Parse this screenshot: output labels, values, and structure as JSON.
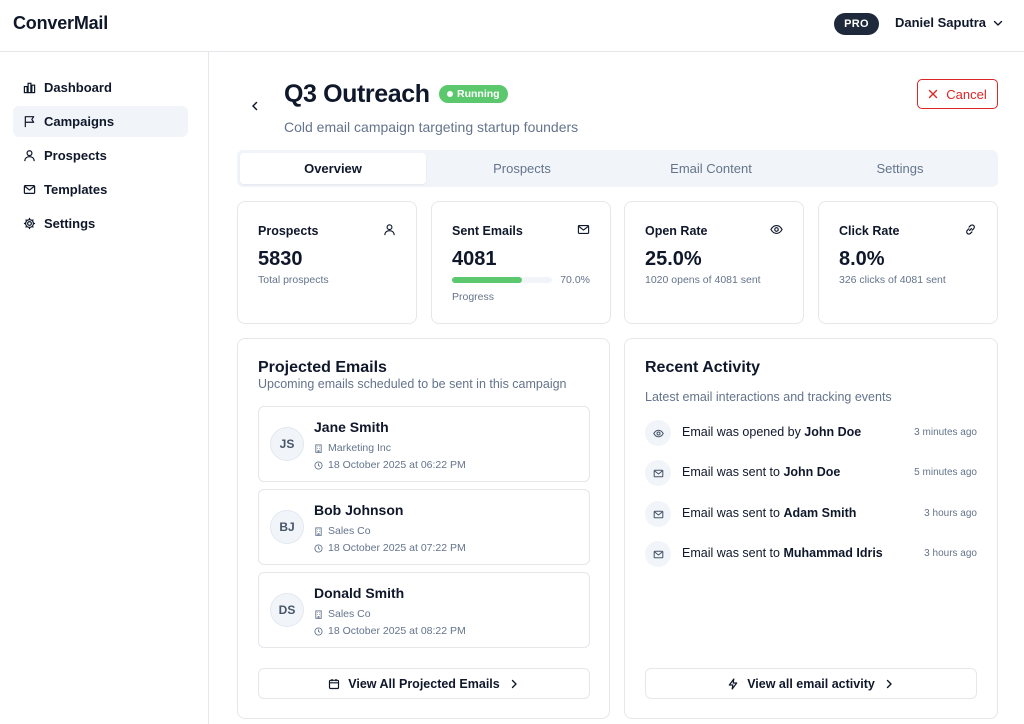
{
  "app": {
    "name": "ConverMail"
  },
  "header": {
    "plan_badge": "PRO",
    "user_name": "Daniel Saputra",
    "user_menu_icon": "chevron-down-icon"
  },
  "sidebar": {
    "items": [
      {
        "label": "Dashboard",
        "icon": "bar-chart-icon",
        "active": false
      },
      {
        "label": "Campaigns",
        "icon": "flag-icon",
        "active": true
      },
      {
        "label": "Prospects",
        "icon": "user-icon",
        "active": false
      },
      {
        "label": "Templates",
        "icon": "mail-icon",
        "active": false
      },
      {
        "label": "Settings",
        "icon": "gear-icon",
        "active": false
      }
    ]
  },
  "campaign": {
    "title": "Q3 Outreach",
    "status": "Running",
    "status_color": "#5cc86d",
    "subtitle": "Cold email campaign targeting startup founders",
    "cancel_label": "Cancel",
    "danger_color": "#dc2626"
  },
  "tabs": [
    {
      "label": "Overview",
      "active": true
    },
    {
      "label": "Prospects",
      "active": false
    },
    {
      "label": "Email Content",
      "active": false
    },
    {
      "label": "Settings",
      "active": false
    }
  ],
  "stats": {
    "prospects": {
      "label": "Prospects",
      "value": "5830",
      "sub": "Total prospects",
      "icon": "user-icon"
    },
    "sent": {
      "label": "Sent Emails",
      "value": "4081",
      "progress": 0.7,
      "progress_label": "70.0%",
      "caption": "Progress",
      "icon": "mail-icon"
    },
    "open_rate": {
      "label": "Open Rate",
      "value": "25.0%",
      "sub": "1020 opens of 4081 sent",
      "icon": "eye-icon"
    },
    "click_rate": {
      "label": "Click Rate",
      "value": "8.0%",
      "sub": "326 clicks of 4081 sent",
      "icon": "link-icon"
    }
  },
  "projected": {
    "title": "Projected Emails",
    "description": "Upcoming emails scheduled to be sent in this campaign",
    "items": [
      {
        "initials": "JS",
        "name": "Jane Smith",
        "company": "Marketing Inc",
        "scheduled": "18 October 2025 at 06:22 PM"
      },
      {
        "initials": "BJ",
        "name": "Bob Johnson",
        "company": "Sales Co",
        "scheduled": "18 October 2025 at 07:22 PM"
      },
      {
        "initials": "DS",
        "name": "Donald Smith",
        "company": "Sales Co",
        "scheduled": "18 October 2025 at 08:22 PM"
      }
    ],
    "button_label": "View All Projected Emails"
  },
  "activity": {
    "title": "Recent Activity",
    "description": "Latest email interactions and tracking events",
    "items": [
      {
        "icon": "eye-icon",
        "text": "Email was opened by ",
        "person": "John Doe",
        "time": "3 minutes ago"
      },
      {
        "icon": "mail-icon",
        "text": "Email was sent to ",
        "person": "John Doe",
        "time": "5 minutes ago"
      },
      {
        "icon": "mail-icon",
        "text": "Email was sent to ",
        "person": "Adam Smith",
        "time": "3 hours ago"
      },
      {
        "icon": "mail-icon",
        "text": "Email was sent to ",
        "person": "Muhammad Idris",
        "time": "3 hours ago"
      }
    ],
    "button_label": "View all email activity"
  }
}
